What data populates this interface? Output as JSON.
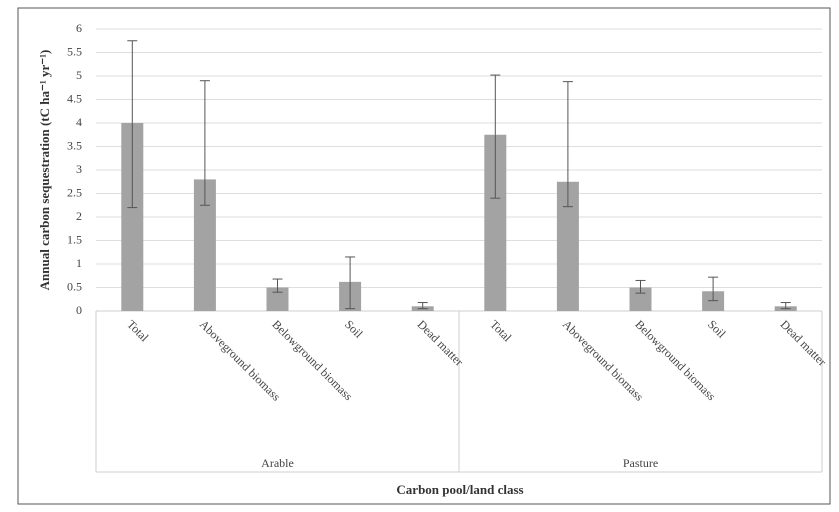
{
  "chart_data": {
    "type": "bar",
    "ylabel": "Annual carbon sequestration (tC ha⁻¹ yr⁻¹)",
    "xlabel": "Carbon pool/land class",
    "categories": [
      "Total",
      "Aboveground biomass",
      "Belowground biomass",
      "Soil",
      "Dead matter",
      "Total",
      "Aboveground biomass",
      "Belowground biomass",
      "Soil",
      "Dead matter"
    ],
    "category_groups": [
      "Arable",
      "Pasture"
    ],
    "series": [
      {
        "color": "#a3a3a3",
        "values": [
          4.0,
          2.8,
          0.5,
          0.62,
          0.1,
          3.75,
          2.75,
          0.5,
          0.42,
          0.1
        ],
        "errors_plus": [
          1.75,
          2.1,
          0.18,
          0.53,
          0.08,
          1.27,
          2.13,
          0.15,
          0.3,
          0.08
        ],
        "errors_minus": [
          1.8,
          0.55,
          0.1,
          0.57,
          0.05,
          1.35,
          0.53,
          0.12,
          0.2,
          0.05
        ]
      }
    ],
    "ylim": [
      0,
      6
    ],
    "yticks": [
      0,
      0.5,
      1,
      1.5,
      2,
      2.5,
      3,
      3.5,
      4,
      4.5,
      5,
      5.5,
      6
    ],
    "grid": true
  }
}
